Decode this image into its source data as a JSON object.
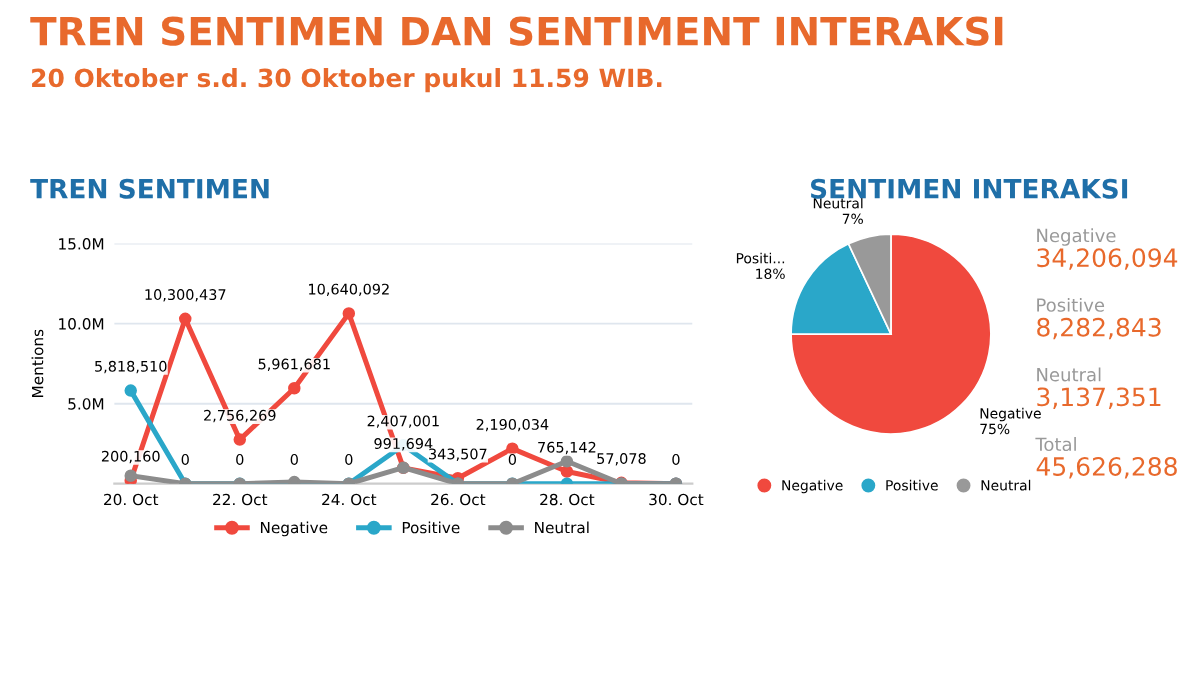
{
  "chart_data": [
    {
      "type": "line",
      "title": "TREN SENTIMEN",
      "annotations": [
        "TREN SENTIMEN DAN SENTIMENT INTERAKSI",
        "20 Oktober s.d. 30 Oktober pukul 11.59 WIB."
      ],
      "categories": [
        "20. Oct",
        null,
        "22. Oct",
        null,
        "24. Oct",
        null,
        "26. Oct",
        null,
        "28. Oct",
        null,
        "30. Oct"
      ],
      "ylabel": "Mentions",
      "ylim": [
        0,
        15000000
      ],
      "yticks": [
        {
          "value": 5000000,
          "label": "5.0M"
        },
        {
          "value": 10000000,
          "label": "10.0M"
        },
        {
          "value": 15000000,
          "label": "15.0M"
        }
      ],
      "grid": "y",
      "legend": "bottom",
      "marker": "circle",
      "line_style": "solid",
      "series": [
        {
          "name": "Negative",
          "color": "#f0493e",
          "values": [
            200160,
            10300437,
            2756269,
            5961681,
            10640092,
            991694,
            343507,
            2190034,
            765142,
            57078,
            0
          ],
          "value_labels": [
            "200,160",
            "10,300,437",
            "2,756,269",
            "5,961,681",
            "10,640,092",
            "991,694",
            "343,507",
            "2,190,034",
            "765,142",
            "57,078",
            null
          ]
        },
        {
          "name": "Positive",
          "color": "#2aa7c9",
          "values": [
            5818510,
            0,
            0,
            0,
            0,
            2407001,
            0,
            0,
            0,
            0,
            0
          ],
          "value_labels": [
            "5,818,510",
            "0",
            "0",
            "0",
            "0",
            "2,407,001",
            null,
            "0",
            null,
            null,
            "0"
          ]
        },
        {
          "name": "Neutral",
          "color": "#8c8c8c",
          "values": [
            500000,
            0,
            0,
            100000,
            0,
            1000000,
            0,
            0,
            1400000,
            0,
            0
          ]
        }
      ]
    },
    {
      "type": "pie",
      "title": "SENTIMEN INTERAKSI",
      "categories": [
        "Negative",
        "Positive",
        "Neutral"
      ],
      "values": [
        75,
        18,
        7
      ],
      "value_labels": [
        "Negative\n75%",
        "Positi...\n18%",
        "Neutral\n7%"
      ],
      "colors": [
        "#f0493e",
        "#2aa7c9",
        "#999999"
      ],
      "legend": "bottom"
    },
    {
      "type": "other",
      "annotations": [
        "Negative",
        "34,206,094",
        "Positive",
        "8,282,843",
        "Neutral",
        "3,137,351",
        "Total",
        "45,626,288"
      ]
    }
  ]
}
